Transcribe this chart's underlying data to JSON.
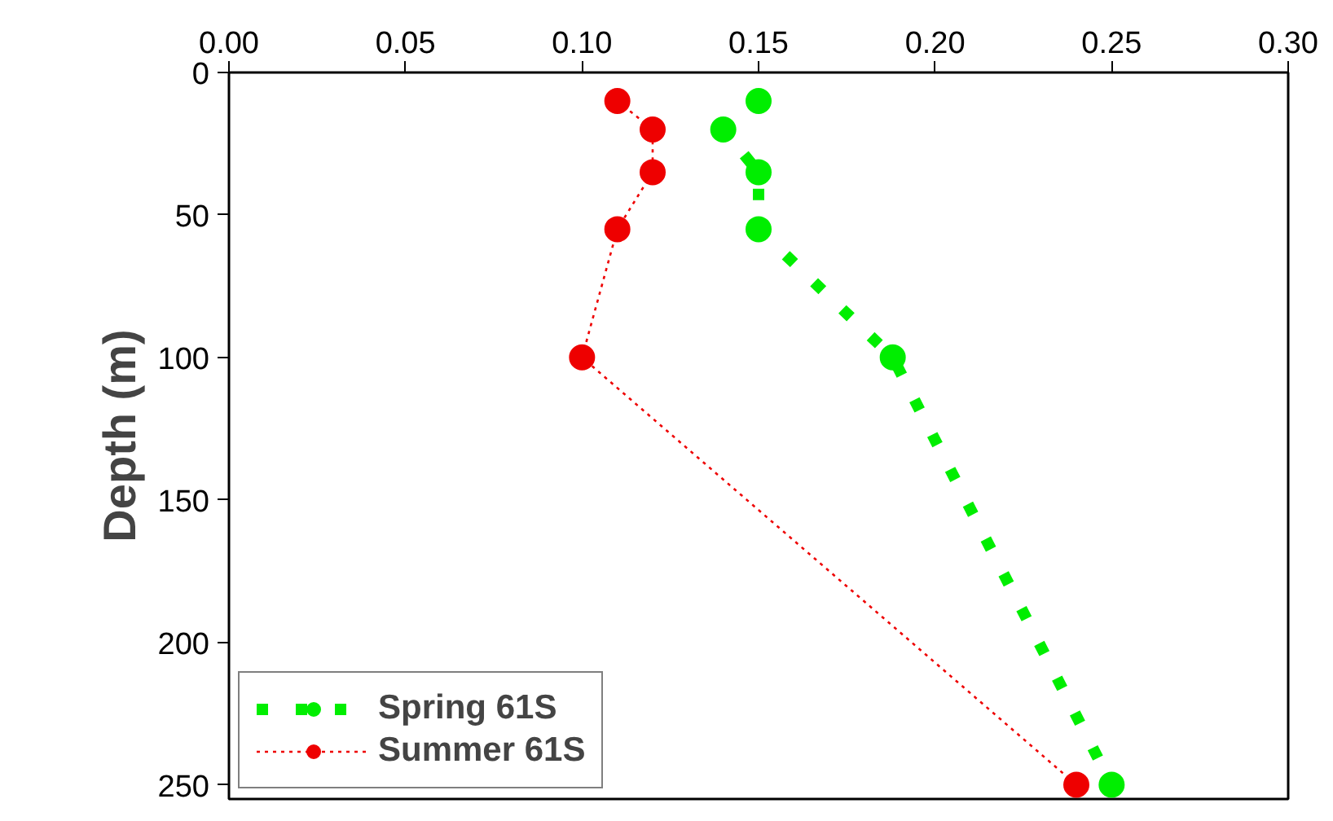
{
  "chart_data": {
    "type": "line",
    "ylabel": "Depth (m)",
    "series": [
      {
        "name": "Spring 61S",
        "color": "#00ee00",
        "x": [
          0.15,
          0.14,
          0.15,
          0.15,
          0.188,
          0.25
        ],
        "values": [
          10,
          20,
          35,
          55,
          100,
          250
        ],
        "line_style": "dotted",
        "marker": "circle"
      },
      {
        "name": "Summer 61S",
        "color": "#ee0000",
        "x": [
          0.11,
          0.12,
          0.12,
          0.11,
          0.1,
          0.24
        ],
        "values": [
          10,
          20,
          35,
          55,
          100,
          250
        ],
        "line_style": "dotted",
        "marker": "circle"
      }
    ],
    "xlim": [
      0,
      0.3
    ],
    "xticks": [
      {
        "value": 0,
        "label": "0.00"
      },
      0.05,
      {
        "value": 0.1,
        "label": "0.10"
      },
      0.15,
      {
        "value": 0.2,
        "label": "0.20"
      },
      0.25,
      {
        "value": 0.3,
        "label": "0.30"
      }
    ],
    "ylim": [
      255,
      0
    ],
    "yticks": [
      0,
      50,
      100,
      150,
      200,
      250
    ],
    "grid": false,
    "legend": "bottom left"
  }
}
